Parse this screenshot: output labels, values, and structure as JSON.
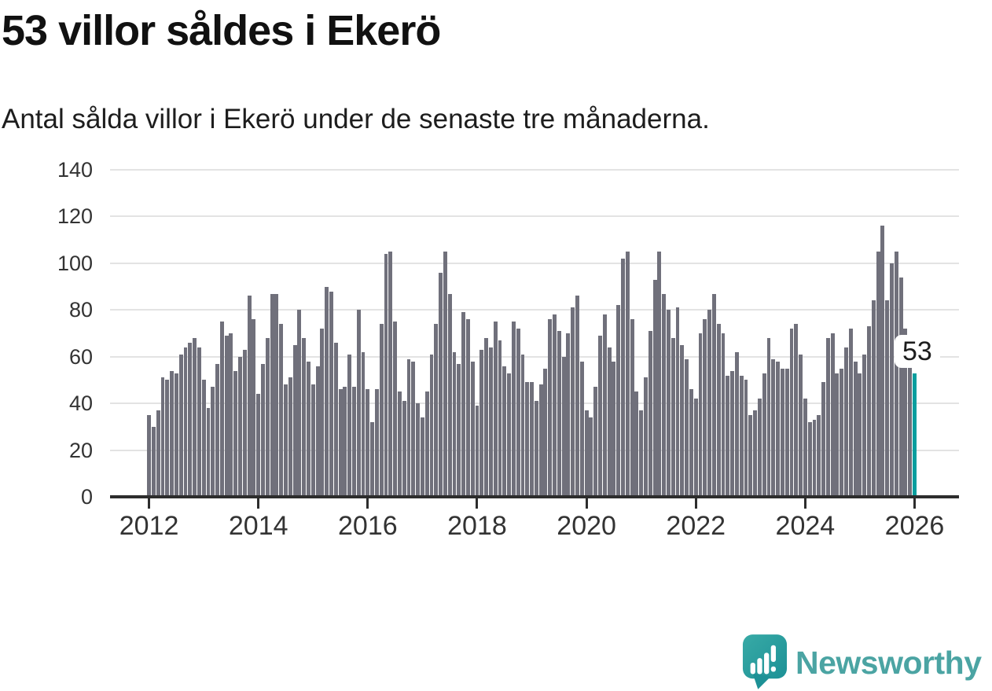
{
  "header": {
    "title": "53 villor såldes i Ekerö",
    "subtitle": "Antal sålda villor i Ekerö under de senaste tre månaderna."
  },
  "chart_data": {
    "type": "bar",
    "title": "53 villor såldes i Ekerö",
    "subtitle": "Antal sålda villor i Ekerö under de senaste tre månaderna.",
    "xlabel": "",
    "ylabel": "",
    "x_unit": "month",
    "x_start": "2012-01",
    "x_end": "2026-01",
    "x_tick_labels": [
      "2012",
      "2014",
      "2016",
      "2018",
      "2020",
      "2022",
      "2024",
      "2026"
    ],
    "y_ticks": [
      0,
      20,
      40,
      60,
      80,
      100,
      120,
      140
    ],
    "ylim": [
      0,
      140
    ],
    "grid": true,
    "legend_position": "none",
    "bar_color": "#70707B",
    "highlight_color": "#089E9E",
    "highlight_index": 168,
    "highlight_label": "53",
    "values": [
      35,
      30,
      37,
      51,
      50,
      54,
      53,
      61,
      64,
      66,
      68,
      64,
      50,
      38,
      47,
      57,
      75,
      69,
      70,
      54,
      60,
      63,
      86,
      76,
      44,
      57,
      68,
      87,
      87,
      74,
      48,
      51,
      65,
      80,
      68,
      58,
      48,
      56,
      72,
      90,
      88,
      66,
      46,
      47,
      61,
      47,
      80,
      62,
      46,
      32,
      46,
      74,
      104,
      105,
      75,
      45,
      41,
      59,
      58,
      40,
      34,
      45,
      61,
      74,
      96,
      105,
      87,
      62,
      57,
      79,
      76,
      58,
      39,
      63,
      68,
      64,
      75,
      67,
      56,
      53,
      75,
      72,
      61,
      49,
      49,
      41,
      48,
      55,
      76,
      78,
      71,
      60,
      70,
      81,
      86,
      58,
      37,
      34,
      47,
      69,
      78,
      64,
      58,
      82,
      102,
      105,
      76,
      45,
      37,
      51,
      71,
      93,
      105,
      87,
      80,
      68,
      81,
      65,
      59,
      46,
      42,
      70,
      76,
      80,
      87,
      74,
      70,
      52,
      54,
      62,
      52,
      50,
      35,
      37,
      42,
      53,
      68,
      59,
      58,
      55,
      55,
      72,
      74,
      61,
      42,
      32,
      33,
      35,
      49,
      68,
      70,
      53,
      55,
      64,
      72,
      58,
      53,
      61,
      73,
      84,
      105,
      116,
      84,
      100,
      105,
      94,
      72,
      56,
      53
    ]
  },
  "annotation": {
    "label": "53"
  },
  "footer": {
    "brand": "Newsworthy",
    "logo_icon": "bar-chart-speech-bubble-icon",
    "brand_text_color": "#4BA4A3",
    "icon_color_top": "#38AAA6",
    "icon_color_bottom": "#1D9196"
  }
}
